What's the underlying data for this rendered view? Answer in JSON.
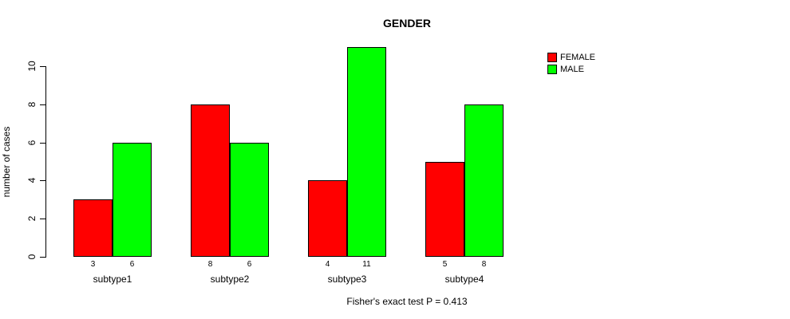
{
  "title": "GENDER",
  "ylabel": "number of cases",
  "footer": "Fisher's exact test P = 0.413",
  "legend": {
    "position": "right",
    "entries": [
      {
        "label": "FEMALE",
        "color": "#FF0000"
      },
      {
        "label": "MALE",
        "color": "#00FF00"
      }
    ]
  },
  "chart_data": {
    "type": "bar",
    "title": "GENDER",
    "xlabel": "",
    "ylabel": "number of cases",
    "categories": [
      "subtype1",
      "subtype2",
      "subtype3",
      "subtype4"
    ],
    "series": [
      {
        "name": "FEMALE",
        "color": "#FF0000",
        "values": [
          3,
          8,
          4,
          5
        ]
      },
      {
        "name": "MALE",
        "color": "#00FF00",
        "values": [
          6,
          6,
          11,
          8
        ]
      }
    ],
    "bar_value_labels": {
      "FEMALE": [
        3,
        8,
        4,
        5
      ],
      "MALE": [
        6,
        6,
        11,
        8
      ]
    },
    "ylim": [
      0,
      10
    ],
    "yticks": [
      0,
      2,
      4,
      6,
      8,
      10
    ],
    "grid": false,
    "legend_position": "right",
    "annotation": "Fisher's exact test P = 0.413"
  }
}
